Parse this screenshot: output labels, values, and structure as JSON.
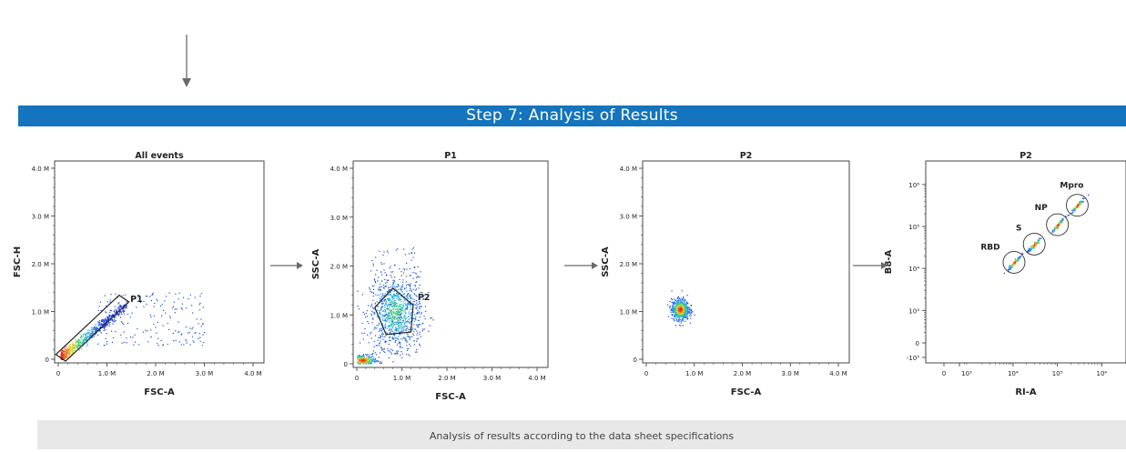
{
  "banner": {
    "title": "Step 7:  Analysis of Results"
  },
  "footer": {
    "caption": "Analysis of results according to the data sheet specifications"
  },
  "chart_data": [
    {
      "type": "scatter",
      "title": "All events",
      "xlabel": "FSC-A",
      "ylabel": "FSC-H",
      "xlim": [
        0,
        4000000
      ],
      "ylim": [
        0,
        4000000
      ],
      "xticks": [
        "0",
        "1.0 M",
        "2.0 M",
        "3.0 M",
        "4.0 M"
      ],
      "yticks": [
        "0",
        "1.0 M",
        "2.0 M",
        "3.0 M",
        "4.0 M"
      ],
      "populations": [
        {
          "kind": "diagonal",
          "x_range": [
            50000,
            1400000
          ],
          "slope": 0.82,
          "spread": 0.06,
          "count": 700
        },
        {
          "kind": "cloud",
          "x": [
            800000,
            3000000
          ],
          "y": [
            300000,
            1400000
          ],
          "count": 180
        }
      ],
      "gates": [
        {
          "name": "P1",
          "shape": "rectangle",
          "points": [
            [
              -50000,
              100000
            ],
            [
              150000,
              -40000
            ],
            [
              1450000,
              1200000
            ],
            [
              1250000,
              1340000
            ]
          ],
          "label_at": [
            1480000,
            1200000
          ]
        }
      ]
    },
    {
      "type": "scatter",
      "title": "P1",
      "xlabel": "FSC-A",
      "ylabel": "SSC-A",
      "xlim": [
        0,
        4000000
      ],
      "ylim": [
        0,
        4000000
      ],
      "xticks": [
        "0",
        "1.0 M",
        "2.0 M",
        "3.0 M",
        "4.0 M"
      ],
      "yticks": [
        "0",
        "1.0 M",
        "2.0 M",
        "3.0 M",
        "4.0 M"
      ],
      "populations": [
        {
          "kind": "blob",
          "center": [
            850000,
            1050000
          ],
          "sd": [
            280000,
            350000
          ],
          "count": 900
        },
        {
          "kind": "blob",
          "center": [
            120000,
            80000
          ],
          "sd": [
            150000,
            60000
          ],
          "count": 350
        },
        {
          "kind": "cloud",
          "x": [
            300000,
            1400000
          ],
          "y": [
            200000,
            2400000
          ],
          "count": 200
        }
      ],
      "gates": [
        {
          "name": "P2",
          "shape": "polygon",
          "points": [
            [
              400000,
              1150000
            ],
            [
              800000,
              1550000
            ],
            [
              1250000,
              1200000
            ],
            [
              1200000,
              650000
            ],
            [
              650000,
              600000
            ]
          ],
          "label_at": [
            1350000,
            1300000
          ]
        }
      ]
    },
    {
      "type": "scatter",
      "title": "P2",
      "xlabel": "FSC-A",
      "ylabel": "SSC-A",
      "xlim": [
        0,
        4000000
      ],
      "ylim": [
        0,
        4000000
      ],
      "xticks": [
        "0",
        "1.0 M",
        "2.0 M",
        "3.0 M",
        "4.0 M"
      ],
      "yticks": [
        "0",
        "1.0 M",
        "2.0 M",
        "3.0 M",
        "4.0 M"
      ],
      "populations": [
        {
          "kind": "blob",
          "center": [
            700000,
            1050000
          ],
          "sd": [
            90000,
            110000
          ],
          "count": 700
        }
      ],
      "gates": []
    },
    {
      "type": "scatter",
      "title": "P2",
      "xlabel": "RI-A",
      "ylabel": "B8-A",
      "scale": "log",
      "xticks": [
        "0",
        "10³",
        "10⁴",
        "10⁵",
        "10⁶"
      ],
      "yticks": [
        "10⁶",
        "10⁵",
        "10⁴",
        "10³",
        "0",
        "-10³"
      ],
      "populations": [
        {
          "kind": "bead",
          "name": "RBD",
          "center": [
            10500,
            14000
          ],
          "count": 90
        },
        {
          "kind": "bead",
          "name": "S",
          "center": [
            30000,
            38000
          ],
          "count": 90
        },
        {
          "kind": "bead",
          "name": "NP",
          "center": [
            100000,
            110000
          ],
          "count": 90
        },
        {
          "kind": "bead",
          "name": "Mpro",
          "center": [
            280000,
            320000
          ],
          "count": 90
        }
      ],
      "gates": [
        {
          "name": "RBD",
          "shape": "circle"
        },
        {
          "name": "S",
          "shape": "circle"
        },
        {
          "name": "NP",
          "shape": "circle"
        },
        {
          "name": "Mpro",
          "shape": "circle"
        }
      ]
    }
  ],
  "colors": {
    "banner": "#1474bd",
    "footer": "#e8e8e8",
    "arrow": "#6b6b6b"
  },
  "icons": {
    "arrow": "right-arrow-icon",
    "top_arrow": "down-arrow-icon"
  }
}
